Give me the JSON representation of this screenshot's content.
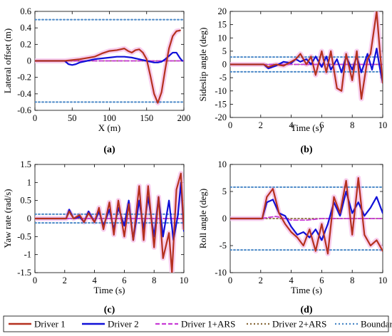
{
  "chart_data": [
    {
      "id": "a",
      "type": "line",
      "panel_label": "(a)",
      "xlabel": "X (m)",
      "ylabel": "Lateral offset (m)",
      "xlim": [
        0,
        200
      ],
      "ylim": [
        -0.6,
        0.6
      ],
      "xticks": [
        0,
        50,
        100,
        150,
        200
      ],
      "yticks": [
        -0.6,
        -0.4,
        -0.2,
        0,
        0.2,
        0.4,
        0.6
      ],
      "grid": false,
      "series": [
        {
          "name": "Driver 1",
          "x": [
            0,
            40,
            60,
            80,
            90,
            100,
            110,
            115,
            120,
            125,
            130,
            135,
            140,
            145,
            150,
            155,
            160,
            165,
            170,
            175,
            180,
            185,
            190,
            195
          ],
          "y": [
            0,
            0,
            0.02,
            0.05,
            0.09,
            0.12,
            0.13,
            0.14,
            0.15,
            0.12,
            0.1,
            0.13,
            0.14,
            0.1,
            0.02,
            -0.18,
            -0.4,
            -0.51,
            -0.38,
            -0.1,
            0.15,
            0.3,
            0.36,
            0.37
          ]
        },
        {
          "name": "Driver 2",
          "x": [
            0,
            40,
            45,
            50,
            55,
            60,
            70,
            80,
            90,
            100,
            110,
            120,
            130,
            140,
            150,
            160,
            165,
            170,
            175,
            180,
            185,
            190,
            195,
            198
          ],
          "y": [
            0,
            0,
            -0.04,
            -0.05,
            -0.04,
            -0.02,
            0,
            0.02,
            0.03,
            0.04,
            0.05,
            0.05,
            0.04,
            0.02,
            0,
            -0.02,
            -0.02,
            -0.01,
            0.02,
            0.06,
            0.1,
            0.1,
            0.03,
            0
          ]
        },
        {
          "name": "Driver 1+ARS",
          "x": [
            0,
            50,
            100,
            150,
            200
          ],
          "y": [
            0,
            0,
            0,
            0,
            0
          ]
        },
        {
          "name": "Driver 2+ARS",
          "x": [
            0,
            50,
            100,
            150,
            200
          ],
          "y": [
            0,
            0,
            0,
            0,
            0
          ]
        },
        {
          "name": "Boundary",
          "x": [
            0,
            200
          ],
          "y": [
            0.5,
            0.5
          ]
        },
        {
          "name": "Boundary",
          "x": [
            0,
            200
          ],
          "y": [
            -0.5,
            -0.5
          ]
        }
      ]
    },
    {
      "id": "b",
      "type": "line",
      "panel_label": "(b)",
      "xlabel": "Time (s)",
      "ylabel": "Sideslip angle (deg)",
      "xlim": [
        0,
        10
      ],
      "ylim": [
        -20,
        20
      ],
      "xticks": [
        0,
        2,
        4,
        6,
        8,
        10
      ],
      "yticks": [
        -20,
        -15,
        -10,
        -5,
        0,
        5,
        10,
        15,
        20
      ],
      "grid": false,
      "series": [
        {
          "name": "Driver 1",
          "x": [
            0,
            2.2,
            2.5,
            3,
            3.5,
            4,
            4.3,
            4.6,
            5,
            5.3,
            5.6,
            6,
            6.3,
            6.6,
            7,
            7.3,
            7.6,
            8,
            8.3,
            8.6,
            9,
            9.2,
            9.4,
            9.6,
            9.8,
            10
          ],
          "y": [
            0,
            0,
            -1,
            0,
            -0.5,
            1,
            2,
            4,
            0,
            3,
            -4,
            5,
            -3,
            5,
            -9,
            -10,
            4,
            -6,
            5,
            -13,
            2,
            4,
            12,
            20,
            6,
            -7
          ]
        },
        {
          "name": "Driver 2",
          "x": [
            0,
            2.2,
            2.5,
            3,
            3.5,
            4,
            4.3,
            4.6,
            5,
            5.3,
            5.6,
            6,
            6.3,
            6.6,
            7,
            7.3,
            7.6,
            8,
            8.3,
            8.6,
            9,
            9.3,
            9.6,
            9.8,
            10
          ],
          "y": [
            0,
            0,
            -1.5,
            -0.5,
            1,
            0.5,
            2,
            1,
            2,
            0,
            3,
            -1,
            3,
            -2,
            2,
            -3,
            3,
            -2,
            3,
            -3,
            4,
            -2,
            6,
            -1,
            -7
          ]
        },
        {
          "name": "Driver 1+ARS",
          "x": [
            0,
            5,
            10
          ],
          "y": [
            0,
            0,
            0
          ]
        },
        {
          "name": "Driver 2+ARS",
          "x": [
            0,
            5,
            10
          ],
          "y": [
            0,
            0,
            0
          ]
        },
        {
          "name": "Boundary",
          "x": [
            0,
            10
          ],
          "y": [
            2.8,
            2.8
          ]
        },
        {
          "name": "Boundary",
          "x": [
            0,
            10
          ],
          "y": [
            -2.8,
            -2.8
          ]
        }
      ]
    },
    {
      "id": "c",
      "type": "line",
      "panel_label": "(c)",
      "xlabel": "Time (s)",
      "ylabel": "Yaw rate (rad/s)",
      "xlim": [
        0,
        10
      ],
      "ylim": [
        -1.5,
        1.5
      ],
      "xticks": [
        0,
        2,
        4,
        6,
        8,
        10
      ],
      "yticks": [
        -1.5,
        -1,
        -0.5,
        0,
        0.5,
        1,
        1.5
      ],
      "grid": false,
      "series": [
        {
          "name": "Driver 1",
          "x": [
            0,
            2.1,
            2.3,
            2.6,
            3,
            3.3,
            3.6,
            4,
            4.3,
            4.6,
            5,
            5.3,
            5.6,
            6,
            6.3,
            6.6,
            7,
            7.3,
            7.6,
            8,
            8.3,
            8.6,
            9,
            9.2,
            9.5,
            9.8,
            10
          ],
          "y": [
            0,
            0,
            0.2,
            0,
            0.1,
            -0.1,
            0.15,
            -0.1,
            0.3,
            -0.3,
            0.45,
            -0.45,
            0.5,
            -0.5,
            0.4,
            -0.6,
            0.9,
            -0.6,
            0.9,
            -0.8,
            0.6,
            -1.1,
            -0.4,
            -1.5,
            0.8,
            1.25,
            -0.3
          ]
        },
        {
          "name": "Driver 2",
          "x": [
            0,
            2.1,
            2.3,
            2.6,
            3,
            3.3,
            3.6,
            4,
            4.3,
            4.6,
            5,
            5.3,
            5.6,
            6,
            6.3,
            6.6,
            7,
            7.3,
            7.6,
            8,
            8.3,
            8.6,
            9,
            9.3,
            9.6,
            9.8,
            10
          ],
          "y": [
            0,
            0,
            0.25,
            0,
            0.05,
            -0.1,
            0.2,
            -0.1,
            0.2,
            -0.2,
            0.25,
            -0.3,
            0.3,
            -0.2,
            0.5,
            -0.6,
            0.5,
            -0.3,
            0.6,
            -0.5,
            0.6,
            -0.5,
            0.5,
            -0.6,
            0.1,
            1.0,
            -0.35
          ]
        },
        {
          "name": "Driver 1+ARS",
          "x": [
            0,
            5,
            10
          ],
          "y": [
            0,
            0,
            0
          ]
        },
        {
          "name": "Driver 2+ARS",
          "x": [
            0,
            5,
            10
          ],
          "y": [
            0,
            0,
            0
          ]
        },
        {
          "name": "Boundary",
          "x": [
            0,
            10
          ],
          "y": [
            0.12,
            0.12
          ]
        },
        {
          "name": "Boundary",
          "x": [
            0,
            10
          ],
          "y": [
            -0.12,
            -0.12
          ]
        }
      ]
    },
    {
      "id": "d",
      "type": "line",
      "panel_label": "(d)",
      "xlabel": "Time (s)",
      "ylabel": "Roll angle (deg)",
      "xlim": [
        0,
        10
      ],
      "ylim": [
        -10,
        10
      ],
      "xticks": [
        0,
        2,
        4,
        6,
        8,
        10
      ],
      "yticks": [
        -10,
        -5,
        0,
        5,
        10
      ],
      "grid": false,
      "series": [
        {
          "name": "Driver 1",
          "x": [
            0,
            2.1,
            2.4,
            2.8,
            3.2,
            3.6,
            4,
            4.4,
            4.8,
            5.2,
            5.6,
            6,
            6.4,
            6.8,
            7.2,
            7.6,
            8,
            8.4,
            8.8,
            9.2,
            9.6,
            10
          ],
          "y": [
            0,
            0,
            4,
            5.5,
            1,
            -1,
            -2.5,
            -3.5,
            -5,
            -2,
            -6,
            -1,
            -6.5,
            4,
            1,
            7,
            -3,
            7.5,
            -3,
            -5,
            -4,
            -6
          ]
        },
        {
          "name": "Driver 2",
          "x": [
            0,
            2.1,
            2.4,
            2.8,
            3.2,
            3.6,
            4,
            4.4,
            4.8,
            5.2,
            5.6,
            6,
            6.4,
            6.8,
            7.2,
            7.6,
            8,
            8.4,
            8.8,
            9.2,
            9.6,
            10
          ],
          "y": [
            0,
            0,
            3,
            3.5,
            1,
            0.5,
            -1.5,
            -3,
            -2.5,
            -3.5,
            -2,
            -4,
            -1,
            3,
            0.5,
            5,
            1,
            3,
            0.5,
            2,
            4,
            1
          ]
        },
        {
          "name": "Driver 1+ARS",
          "x": [
            0,
            2,
            3,
            4,
            5,
            6,
            8,
            10
          ],
          "y": [
            0,
            0,
            0.4,
            -0.3,
            -0.3,
            0,
            0,
            0
          ]
        },
        {
          "name": "Driver 2+ARS",
          "x": [
            0,
            5,
            10
          ],
          "y": [
            0,
            0,
            0
          ]
        },
        {
          "name": "Boundary",
          "x": [
            0,
            10
          ],
          "y": [
            5.8,
            5.8
          ]
        },
        {
          "name": "Boundary",
          "x": [
            0,
            10
          ],
          "y": [
            -5.8,
            -5.8
          ]
        }
      ]
    }
  ],
  "legend": {
    "position": "bottom",
    "items": [
      {
        "label": "Driver 1",
        "color": "#b5311f",
        "style": "solid"
      },
      {
        "label": "Driver 2",
        "color": "#1010d8",
        "style": "solid"
      },
      {
        "label": "Driver 1+ARS",
        "color": "#c83bd6",
        "style": "dashed"
      },
      {
        "label": "Driver 2+ARS",
        "color": "#8a6b3c",
        "style": "dotted"
      },
      {
        "label": "Boundary",
        "color": "#4a88c7",
        "style": "dotted"
      }
    ]
  },
  "colors": {
    "driver1": "#b5311f",
    "driver2": "#1010d8",
    "driver1_ars": "#c83bd6",
    "driver2_ars": "#8a6b3c",
    "boundary": "#4a88c7",
    "envelope": "#f6c3ea"
  }
}
